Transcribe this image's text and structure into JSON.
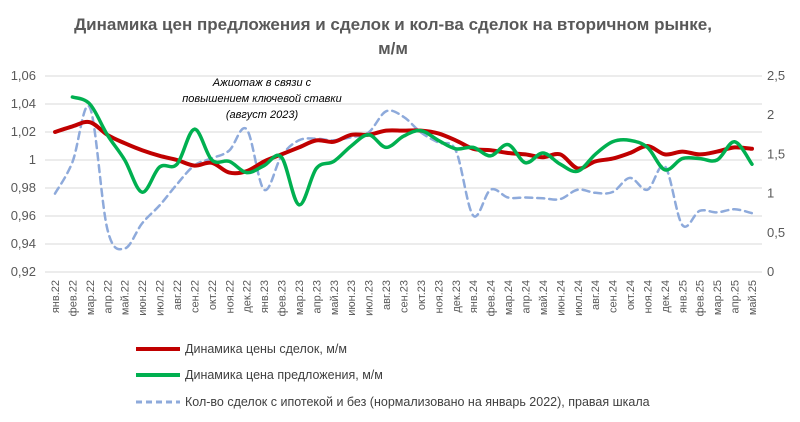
{
  "chart_data": {
    "type": "line",
    "title": [
      "Динамика цен предложения и сделок и кол-ва сделок на вторичном рынке,",
      "м/м"
    ],
    "annotation": [
      "Ажиотаж в связи с",
      "повышением ключевой ставки",
      "(август 2023)"
    ],
    "categories": [
      "янв.22",
      "фев.22",
      "мар.22",
      "апр.22",
      "май.22",
      "июн.22",
      "июл.22",
      "авг.22",
      "сен.22",
      "окт.22",
      "ноя.22",
      "дек.22",
      "янв.23",
      "фев.23",
      "мар.23",
      "апр.23",
      "май.23",
      "июн.23",
      "июл.23",
      "авг.23",
      "сен.23",
      "окт.23",
      "ноя.23",
      "дек.23",
      "янв.24",
      "фев.24",
      "мар.24",
      "апр.24",
      "май.24",
      "июн.24",
      "июл.24",
      "авг.24",
      "сен.24",
      "окт.24",
      "ноя.24",
      "дек.24",
      "янв.25",
      "фев.25",
      "мар.25",
      "апр.25",
      "май.25"
    ],
    "left_axis": {
      "min": 0.92,
      "max": 1.06,
      "step": 0.02,
      "labels": [
        "0,92",
        "0,94",
        "0,96",
        "0,98",
        "1",
        "1,02",
        "1,04",
        "1,06"
      ]
    },
    "right_axis": {
      "min": 0,
      "max": 2.5,
      "step": 0.5,
      "labels": [
        "0",
        "0,5",
        "1",
        "1,5",
        "2",
        "2,5"
      ]
    },
    "series": [
      {
        "name": "Динамика цены сделок, м/м",
        "axis": "left",
        "color": "#c00000",
        "style": "solid",
        "values": [
          1.02,
          1.024,
          1.027,
          1.018,
          1.012,
          1.007,
          1.003,
          1.0,
          0.996,
          0.998,
          0.991,
          0.992,
          0.999,
          1.004,
          1.009,
          1.014,
          1.013,
          1.018,
          1.018,
          1.021,
          1.021,
          1.021,
          1.019,
          1.014,
          1.008,
          1.007,
          1.005,
          1.004,
          1.002,
          1.004,
          0.994,
          0.999,
          1.001,
          1.005,
          1.01,
          1.004,
          1.006,
          1.004,
          1.006,
          1.009,
          1.008
        ]
      },
      {
        "name": "Динамика цена предложения, м/м",
        "axis": "left",
        "color": "#00b050",
        "style": "solid",
        "values": [
          null,
          1.045,
          1.04,
          1.018,
          1.0,
          0.977,
          0.995,
          0.997,
          1.022,
          1.0,
          0.999,
          0.991,
          0.996,
          1.002,
          0.968,
          0.994,
          0.999,
          1.01,
          1.018,
          1.009,
          1.017,
          1.021,
          1.014,
          1.008,
          1.009,
          1.003,
          1.011,
          0.998,
          1.005,
          0.997,
          0.992,
          1.004,
          1.013,
          1.014,
          1.009,
          0.993,
          1.001,
          1.001,
          1.0,
          1.013,
          0.997
        ]
      },
      {
        "name": "Кол-во сделок с ипотекой и без (нормализовано на январь 2022),  правая шкала",
        "axis": "right",
        "color": "#8eaadb",
        "style": "dashed",
        "values": [
          1.0,
          1.4,
          2.1,
          0.55,
          0.3,
          0.62,
          0.85,
          1.12,
          1.36,
          1.45,
          1.55,
          1.82,
          1.05,
          1.48,
          1.68,
          1.7,
          1.68,
          1.72,
          1.78,
          2.05,
          1.98,
          1.78,
          1.65,
          1.55,
          0.72,
          1.05,
          0.95,
          0.95,
          0.94,
          0.93,
          1.05,
          1.01,
          1.02,
          1.2,
          1.05,
          1.35,
          0.6,
          0.78,
          0.76,
          0.8,
          0.75
        ]
      }
    ]
  }
}
